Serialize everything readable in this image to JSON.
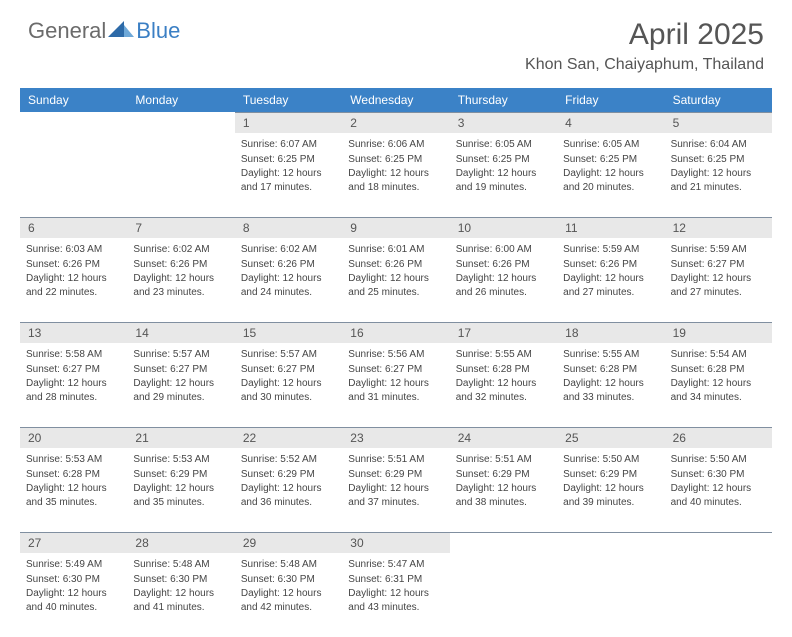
{
  "logo": {
    "part1": "General",
    "part2": "Blue"
  },
  "title": "April 2025",
  "location": "Khon San, Chaiyaphum, Thailand",
  "colors": {
    "header_bg": "#3b82c7",
    "header_text": "#ffffff",
    "daynum_bg": "#e8e8e8",
    "border": "#808fa0",
    "body_text": "#454545",
    "title_text": "#555555",
    "logo_gray": "#6b6b6b",
    "logo_blue": "#3b7fc4"
  },
  "weekdays": [
    "Sunday",
    "Monday",
    "Tuesday",
    "Wednesday",
    "Thursday",
    "Friday",
    "Saturday"
  ],
  "weeks": [
    [
      null,
      null,
      {
        "n": "1",
        "sr": "6:07 AM",
        "ss": "6:25 PM",
        "dl": "12 hours and 17 minutes."
      },
      {
        "n": "2",
        "sr": "6:06 AM",
        "ss": "6:25 PM",
        "dl": "12 hours and 18 minutes."
      },
      {
        "n": "3",
        "sr": "6:05 AM",
        "ss": "6:25 PM",
        "dl": "12 hours and 19 minutes."
      },
      {
        "n": "4",
        "sr": "6:05 AM",
        "ss": "6:25 PM",
        "dl": "12 hours and 20 minutes."
      },
      {
        "n": "5",
        "sr": "6:04 AM",
        "ss": "6:25 PM",
        "dl": "12 hours and 21 minutes."
      }
    ],
    [
      {
        "n": "6",
        "sr": "6:03 AM",
        "ss": "6:26 PM",
        "dl": "12 hours and 22 minutes."
      },
      {
        "n": "7",
        "sr": "6:02 AM",
        "ss": "6:26 PM",
        "dl": "12 hours and 23 minutes."
      },
      {
        "n": "8",
        "sr": "6:02 AM",
        "ss": "6:26 PM",
        "dl": "12 hours and 24 minutes."
      },
      {
        "n": "9",
        "sr": "6:01 AM",
        "ss": "6:26 PM",
        "dl": "12 hours and 25 minutes."
      },
      {
        "n": "10",
        "sr": "6:00 AM",
        "ss": "6:26 PM",
        "dl": "12 hours and 26 minutes."
      },
      {
        "n": "11",
        "sr": "5:59 AM",
        "ss": "6:26 PM",
        "dl": "12 hours and 27 minutes."
      },
      {
        "n": "12",
        "sr": "5:59 AM",
        "ss": "6:27 PM",
        "dl": "12 hours and 27 minutes."
      }
    ],
    [
      {
        "n": "13",
        "sr": "5:58 AM",
        "ss": "6:27 PM",
        "dl": "12 hours and 28 minutes."
      },
      {
        "n": "14",
        "sr": "5:57 AM",
        "ss": "6:27 PM",
        "dl": "12 hours and 29 minutes."
      },
      {
        "n": "15",
        "sr": "5:57 AM",
        "ss": "6:27 PM",
        "dl": "12 hours and 30 minutes."
      },
      {
        "n": "16",
        "sr": "5:56 AM",
        "ss": "6:27 PM",
        "dl": "12 hours and 31 minutes."
      },
      {
        "n": "17",
        "sr": "5:55 AM",
        "ss": "6:28 PM",
        "dl": "12 hours and 32 minutes."
      },
      {
        "n": "18",
        "sr": "5:55 AM",
        "ss": "6:28 PM",
        "dl": "12 hours and 33 minutes."
      },
      {
        "n": "19",
        "sr": "5:54 AM",
        "ss": "6:28 PM",
        "dl": "12 hours and 34 minutes."
      }
    ],
    [
      {
        "n": "20",
        "sr": "5:53 AM",
        "ss": "6:28 PM",
        "dl": "12 hours and 35 minutes."
      },
      {
        "n": "21",
        "sr": "5:53 AM",
        "ss": "6:29 PM",
        "dl": "12 hours and 35 minutes."
      },
      {
        "n": "22",
        "sr": "5:52 AM",
        "ss": "6:29 PM",
        "dl": "12 hours and 36 minutes."
      },
      {
        "n": "23",
        "sr": "5:51 AM",
        "ss": "6:29 PM",
        "dl": "12 hours and 37 minutes."
      },
      {
        "n": "24",
        "sr": "5:51 AM",
        "ss": "6:29 PM",
        "dl": "12 hours and 38 minutes."
      },
      {
        "n": "25",
        "sr": "5:50 AM",
        "ss": "6:29 PM",
        "dl": "12 hours and 39 minutes."
      },
      {
        "n": "26",
        "sr": "5:50 AM",
        "ss": "6:30 PM",
        "dl": "12 hours and 40 minutes."
      }
    ],
    [
      {
        "n": "27",
        "sr": "5:49 AM",
        "ss": "6:30 PM",
        "dl": "12 hours and 40 minutes."
      },
      {
        "n": "28",
        "sr": "5:48 AM",
        "ss": "6:30 PM",
        "dl": "12 hours and 41 minutes."
      },
      {
        "n": "29",
        "sr": "5:48 AM",
        "ss": "6:30 PM",
        "dl": "12 hours and 42 minutes."
      },
      {
        "n": "30",
        "sr": "5:47 AM",
        "ss": "6:31 PM",
        "dl": "12 hours and 43 minutes."
      },
      null,
      null,
      null
    ]
  ],
  "labels": {
    "sunrise": "Sunrise:",
    "sunset": "Sunset:",
    "daylight": "Daylight:"
  }
}
